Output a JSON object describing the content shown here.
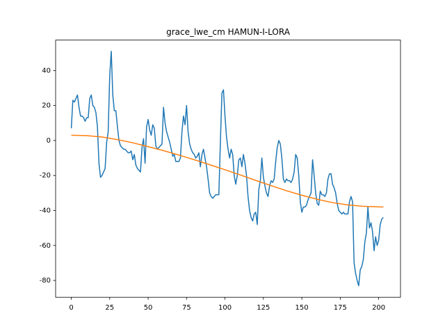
{
  "chart_data": {
    "type": "line",
    "title": "grace_lwe_cm HAMUN-I-LORA",
    "xlim": [
      -10.2,
      214.2
    ],
    "ylim": [
      -89.6,
      57.4
    ],
    "xticks": [
      0,
      25,
      50,
      75,
      100,
      125,
      150,
      175,
      200
    ],
    "yticks": [
      -80,
      -60,
      -40,
      -20,
      0,
      20,
      40
    ],
    "series": [
      {
        "color": "#1f77b4",
        "x": [
          0,
          1,
          2,
          3,
          4,
          5,
          6,
          7,
          8,
          9,
          10,
          11,
          12,
          13,
          14,
          15,
          16,
          17,
          18,
          19,
          20,
          21,
          22,
          23,
          24,
          25,
          26,
          27,
          28,
          29,
          30,
          31,
          32,
          33,
          34,
          35,
          36,
          37,
          38,
          39,
          40,
          41,
          42,
          43,
          44,
          45,
          46,
          47,
          48,
          49,
          50,
          51,
          52,
          53,
          54,
          55,
          56,
          57,
          58,
          59,
          60,
          61,
          62,
          63,
          64,
          65,
          66,
          67,
          68,
          69,
          70,
          71,
          72,
          73,
          74,
          75,
          76,
          77,
          78,
          79,
          80,
          81,
          82,
          83,
          84,
          85,
          86,
          87,
          88,
          89,
          90,
          91,
          92,
          93,
          94,
          95,
          96,
          97,
          98,
          99,
          100,
          101,
          102,
          103,
          104,
          105,
          106,
          107,
          108,
          109,
          110,
          111,
          112,
          113,
          114,
          115,
          116,
          117,
          118,
          119,
          120,
          121,
          122,
          123,
          124,
          125,
          126,
          127,
          128,
          129,
          130,
          131,
          132,
          133,
          134,
          135,
          136,
          137,
          138,
          139,
          140,
          141,
          142,
          143,
          144,
          145,
          146,
          147,
          148,
          149,
          150,
          151,
          152,
          153,
          154,
          155,
          156,
          157,
          158,
          159,
          160,
          161,
          162,
          163,
          164,
          165,
          166,
          167,
          168,
          169,
          170,
          171,
          172,
          173,
          174,
          175,
          176,
          177,
          178,
          179,
          180,
          181,
          182,
          183,
          184,
          185,
          186,
          187,
          188,
          189,
          190,
          191,
          192,
          193,
          194,
          195,
          196,
          197,
          198,
          199,
          200,
          201,
          202,
          203
        ],
        "values": [
          7,
          23,
          22,
          24,
          26,
          19,
          14,
          14,
          13,
          11,
          13,
          13,
          24,
          26,
          20,
          19,
          16,
          8,
          -13,
          -21,
          -20,
          -18,
          -16,
          -1,
          5,
          37,
          51,
          26,
          17,
          17,
          8,
          0,
          -3,
          -4,
          -5,
          -5,
          -6,
          -7,
          -7,
          -6,
          -11,
          -8,
          -14,
          -16,
          -17,
          -18,
          -4,
          1,
          -13,
          8,
          12,
          6,
          3,
          9,
          7,
          -3,
          -5,
          -4,
          -3,
          -2,
          19,
          10,
          5,
          2,
          -1,
          -5,
          -9,
          -8,
          -12,
          -12,
          -12,
          -10,
          5,
          14,
          9,
          20,
          5,
          -2,
          -5,
          -7,
          -8,
          -10,
          -9,
          -7,
          -15,
          -8,
          -5,
          -10,
          -15,
          -22,
          -30,
          -32,
          -33,
          -32,
          -31,
          -31,
          -31,
          -1,
          27,
          29,
          14,
          2,
          -5,
          -10,
          -5,
          -8,
          -20,
          -25,
          -20,
          -11,
          -10,
          -15,
          -8,
          -13,
          -20,
          -32,
          -40,
          -44,
          -46,
          -42,
          -41,
          -48,
          -28,
          -23,
          -10,
          -21,
          -26,
          -30,
          -32,
          -26,
          -23,
          -24,
          -22,
          -12,
          -4,
          0,
          -2,
          -10,
          -22,
          -24,
          -22,
          -23,
          -23,
          -24,
          -22,
          -18,
          -8,
          -10,
          -20,
          -35,
          -41,
          -38,
          -38,
          -37,
          -34,
          -32,
          -30,
          -11,
          -20,
          -30,
          -36,
          -37,
          -29,
          -31,
          -31,
          -32,
          -30,
          -22,
          -19,
          -19,
          -25,
          -27,
          -30,
          -36,
          -40,
          -41,
          -42,
          -41,
          -42,
          -42,
          -42,
          -35,
          -32,
          -35,
          -70,
          -76,
          -80,
          -83,
          -74,
          -72,
          -68,
          -58,
          -53,
          -38,
          -50,
          -47,
          -52,
          -63,
          -55,
          -60,
          -57,
          -48,
          -45,
          -44
        ]
      },
      {
        "color": "#ff7f0e",
        "x": [
          0,
          10,
          20,
          30,
          40,
          50,
          60,
          70,
          80,
          90,
          100,
          110,
          120,
          130,
          140,
          150,
          160,
          170,
          180,
          190,
          200,
          203
        ],
        "values": [
          3,
          2.8,
          2,
          0.5,
          -1.3,
          -3.5,
          -5.8,
          -8.3,
          -11,
          -13.8,
          -16.7,
          -19.7,
          -22.8,
          -25.8,
          -28.7,
          -31.3,
          -33.6,
          -35.5,
          -36.8,
          -37.6,
          -37.9,
          -38
        ]
      }
    ]
  }
}
